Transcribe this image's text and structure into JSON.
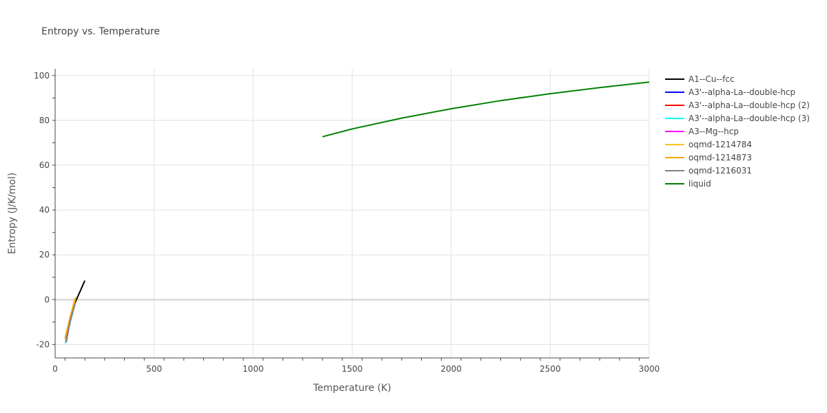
{
  "chart_data": {
    "type": "line",
    "title": "Entropy vs. Temperature",
    "xlabel": "Temperature (K)",
    "ylabel": "Entropy (J/K/mol)",
    "xlim": [
      0,
      3000
    ],
    "ylim": [
      -26,
      103
    ],
    "xticks": [
      0,
      500,
      1000,
      1500,
      2000,
      2500,
      3000
    ],
    "yticks": [
      -20,
      0,
      20,
      40,
      60,
      80,
      100
    ],
    "grid": true,
    "legend": "right",
    "series": [
      {
        "name": "A1--Cu--fcc",
        "color": "#000000",
        "x": [
          100,
          125,
          150
        ],
        "y": [
          -1.5,
          3.5,
          8.5
        ]
      },
      {
        "name": "A3'--alpha-La--double-hcp",
        "color": "#0000ff",
        "x": [
          55,
          75,
          100
        ],
        "y": [
          -19,
          -10,
          -2
        ]
      },
      {
        "name": "A3'--alpha-La--double-hcp (2)",
        "color": "#ff0000",
        "x": [
          55,
          75,
          100
        ],
        "y": [
          -19,
          -10,
          -2
        ]
      },
      {
        "name": "A3'--alpha-La--double-hcp (3)",
        "color": "#00ffff",
        "x": [
          50,
          75,
          100
        ],
        "y": [
          -19.5,
          -10.5,
          -2
        ]
      },
      {
        "name": "A3--Mg--hcp",
        "color": "#ff00ff",
        "x": [
          55,
          75,
          100
        ],
        "y": [
          -18.5,
          -10,
          -1.5
        ]
      },
      {
        "name": "oqmd-1214784",
        "color": "#fcc21b",
        "x": [
          50,
          75,
          100
        ],
        "y": [
          -17,
          -8.5,
          0.5
        ]
      },
      {
        "name": "oqmd-1214873",
        "color": "#ffa500",
        "x": [
          50,
          75,
          105
        ],
        "y": [
          -17.5,
          -8,
          1
        ]
      },
      {
        "name": "oqmd-1216031",
        "color": "#808080",
        "x": [
          55,
          75,
          100
        ],
        "y": [
          -18.5,
          -10,
          -2
        ]
      },
      {
        "name": "liquid",
        "color": "#008000",
        "x": [
          1350,
          1500,
          1750,
          2000,
          2250,
          2500,
          2750,
          3000
        ],
        "y": [
          72.7,
          76.2,
          81.0,
          85.2,
          88.8,
          91.9,
          94.6,
          97.1
        ]
      }
    ]
  }
}
